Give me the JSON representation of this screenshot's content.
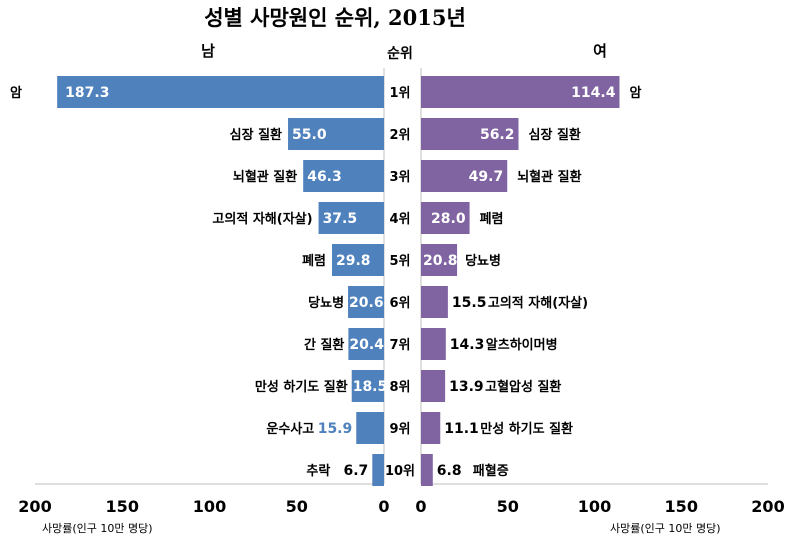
{
  "chart_data": {
    "type": "bar",
    "title": "성별 사망원인 순위, 2015년",
    "rank_header": "순위",
    "ranks": [
      "1위",
      "2위",
      "3위",
      "4위",
      "5위",
      "6위",
      "7위",
      "8위",
      "9위",
      "10위"
    ],
    "series": [
      {
        "name": "남",
        "categories": [
          "암",
          "심장 질환",
          "뇌혈관 질환",
          "고의적 자해(자살)",
          "폐렴",
          "당뇨병",
          "간 질환",
          "만성 하기도 질환",
          "운수사고",
          "추락"
        ],
        "values": [
          187.3,
          55.0,
          46.3,
          37.5,
          29.8,
          20.6,
          20.4,
          18.5,
          15.9,
          6.7
        ],
        "value_labels": [
          "187.3",
          "55.0",
          "46.3",
          "37.5",
          "29.8",
          "20.6",
          "20.4",
          "18.5",
          "15.9",
          "6.7"
        ],
        "color": "#4f81bd"
      },
      {
        "name": "여",
        "categories": [
          "암",
          "심장 질환",
          "뇌혈관 질환",
          "폐렴",
          "당뇨병",
          "고의적 자해(자살)",
          "알츠하이머병",
          "고혈압성 질환",
          "만성 하기도 질환",
          "패혈증"
        ],
        "values": [
          114.4,
          56.2,
          49.7,
          28.0,
          20.8,
          15.5,
          14.3,
          13.9,
          11.1,
          6.8
        ],
        "value_labels": [
          "114.4",
          "56.2",
          "49.7",
          "28.0",
          "20.8",
          "15.5",
          "14.3",
          "13.9",
          "11.1",
          "6.8"
        ],
        "color": "#8064a2"
      }
    ],
    "xlim": [
      0,
      200
    ],
    "ticks": [
      "200",
      "150",
      "100",
      "50",
      "0"
    ],
    "ticks_right": [
      "0",
      "50",
      "100",
      "150",
      "200"
    ],
    "xlabel_left": "사망률(인구 10만 명당)",
    "xlabel_right": "사망률(인구 10만 명당)"
  }
}
